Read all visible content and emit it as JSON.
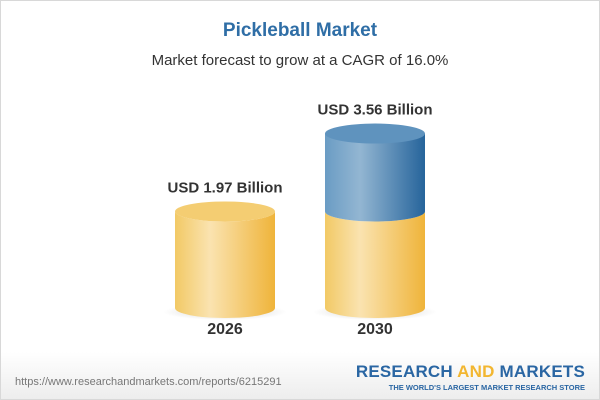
{
  "chart_data": {
    "type": "bar",
    "title": "Pickleball Market",
    "subtitle": "Market forecast to grow at a CAGR of 16.0%",
    "categories": [
      "2026",
      "2030"
    ],
    "values": [
      1.97,
      3.56
    ],
    "data_labels": [
      "USD 1.97 Billion",
      "USD 3.56 Billion"
    ],
    "style": "3d-cylinder",
    "colors": {
      "base": "#f3c860",
      "growth": "#4a82b4",
      "title": "#2f6ea6"
    }
  },
  "footer": {
    "url": "https://www.researchandmarkets.com/reports/6215291",
    "logo_part1": "RESEARCH ",
    "logo_part2": "AND",
    "logo_part3": " MARKETS",
    "logo_tagline": "THE WORLD'S LARGEST MARKET RESEARCH STORE"
  }
}
